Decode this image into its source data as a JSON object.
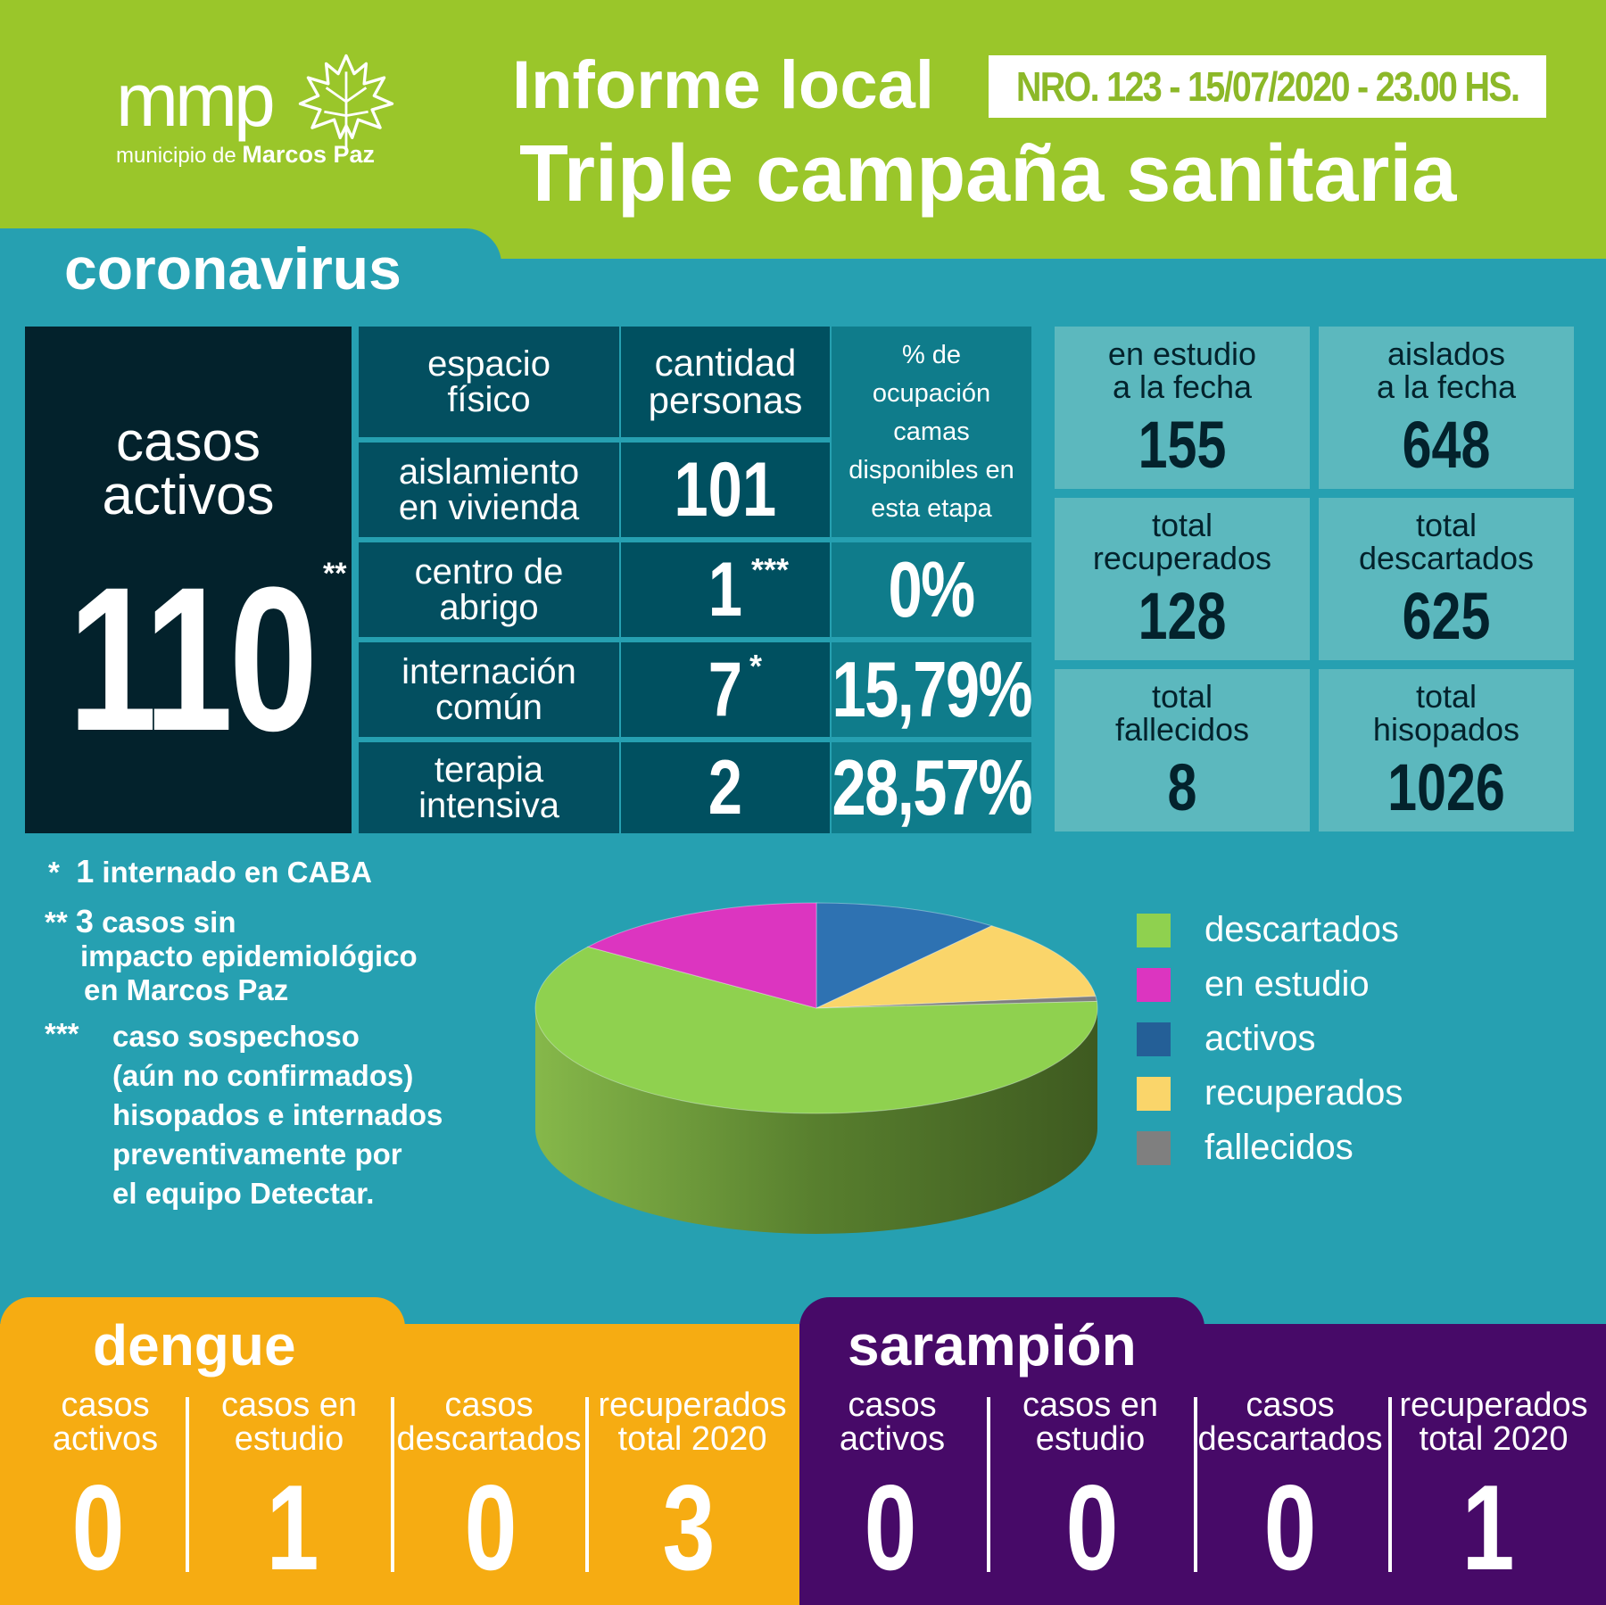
{
  "header": {
    "logo_text": "mmp",
    "logo_subtitle_prefix": "municipio de ",
    "logo_subtitle_bold": "Marcos Paz",
    "title_line1": "Informe local",
    "report_id": "NRO. 123 - 15/07/2020 - 23.00 HS.",
    "title_line2": "Triple campaña sanitaria",
    "colors": {
      "header_bg": "#9ac62a",
      "main_bg": "#26a0b1"
    }
  },
  "coronavirus": {
    "title": "coronavirus",
    "active_cases": {
      "label_line1": "casos",
      "label_line2": "activos",
      "value": "110",
      "marker": "**"
    },
    "table": {
      "header_space_line1": "espacio",
      "header_space_line2": "físico",
      "header_count_line1": "cantidad",
      "header_count_line2": "personas",
      "header_occupancy": [
        "% de",
        "ocupación",
        "camas",
        "disponibles en",
        "esta etapa"
      ],
      "rows": [
        {
          "label_line1": "aislamiento",
          "label_line2": "en vivienda",
          "count": "101",
          "marker": "",
          "occupancy": ""
        },
        {
          "label_line1": "centro de",
          "label_line2": "abrigo",
          "count": "1",
          "marker": "***",
          "occupancy": "0%"
        },
        {
          "label_line1": "internación",
          "label_line2": "común",
          "count": "7",
          "marker": "*",
          "occupancy": "15,79%"
        },
        {
          "label_line1": "terapia",
          "label_line2": "intensiva",
          "count": "2",
          "marker": "",
          "occupancy": "28,57%"
        }
      ]
    },
    "stats": [
      {
        "label_line1": "en estudio",
        "label_line2": "a la fecha",
        "value": "155"
      },
      {
        "label_line1": "aislados",
        "label_line2": "a la fecha",
        "value": "648"
      },
      {
        "label_line1": "total",
        "label_line2": "recuperados",
        "value": "128"
      },
      {
        "label_line1": "total",
        "label_line2": "descartados",
        "value": "625"
      },
      {
        "label_line1": "total",
        "label_line2": "fallecidos",
        "value": "8"
      },
      {
        "label_line1": "total",
        "label_line2": "hisopados",
        "value": "1026"
      }
    ],
    "footnotes": {
      "note1_marker": "*",
      "note1_number": "1",
      "note1_text": "internado en CABA",
      "note2_marker": "**",
      "note2_number": "3",
      "note2_line1": "casos sin",
      "note2_line2": "impacto epidemiológico",
      "note2_line3": "en Marcos Paz",
      "note3_marker": "***",
      "note3_lines": [
        "caso sospechoso",
        "(aún no confirmados)",
        "hisopados e internados",
        "preventivamente por",
        "el equipo Detectar."
      ]
    }
  },
  "chart_data": {
    "type": "pie",
    "title": "",
    "slices": [
      {
        "label": "descartados",
        "value": 625,
        "color": "#8fd14f"
      },
      {
        "label": "en estudio",
        "value": 155,
        "color": "#dc35c0"
      },
      {
        "label": "activos",
        "value": 110,
        "color": "#2e72b2"
      },
      {
        "label": "recuperados",
        "value": 128,
        "color": "#fad56a"
      },
      {
        "label": "fallecidos",
        "value": 8,
        "color": "#7f7f7f"
      }
    ],
    "legend_position": "right"
  },
  "dengue": {
    "title": "dengue",
    "color": "#f6ac12",
    "items": [
      {
        "label_line1": "casos",
        "label_line2": "activos",
        "value": "0"
      },
      {
        "label_line1": "casos en",
        "label_line2": "estudio",
        "value": "1"
      },
      {
        "label_line1": "casos",
        "label_line2": "descartados",
        "value": "0"
      },
      {
        "label_line1": "recuperados",
        "label_line2": "total 2020",
        "value": "3"
      }
    ]
  },
  "sarampion": {
    "title": "sarampión",
    "color": "#470a68",
    "items": [
      {
        "label_line1": "casos",
        "label_line2": "activos",
        "value": "0"
      },
      {
        "label_line1": "casos en",
        "label_line2": "estudio",
        "value": "0"
      },
      {
        "label_line1": "casos",
        "label_line2": "descartados",
        "value": "0"
      },
      {
        "label_line1": "recuperados",
        "label_line2": "total 2020",
        "value": "1"
      }
    ]
  }
}
